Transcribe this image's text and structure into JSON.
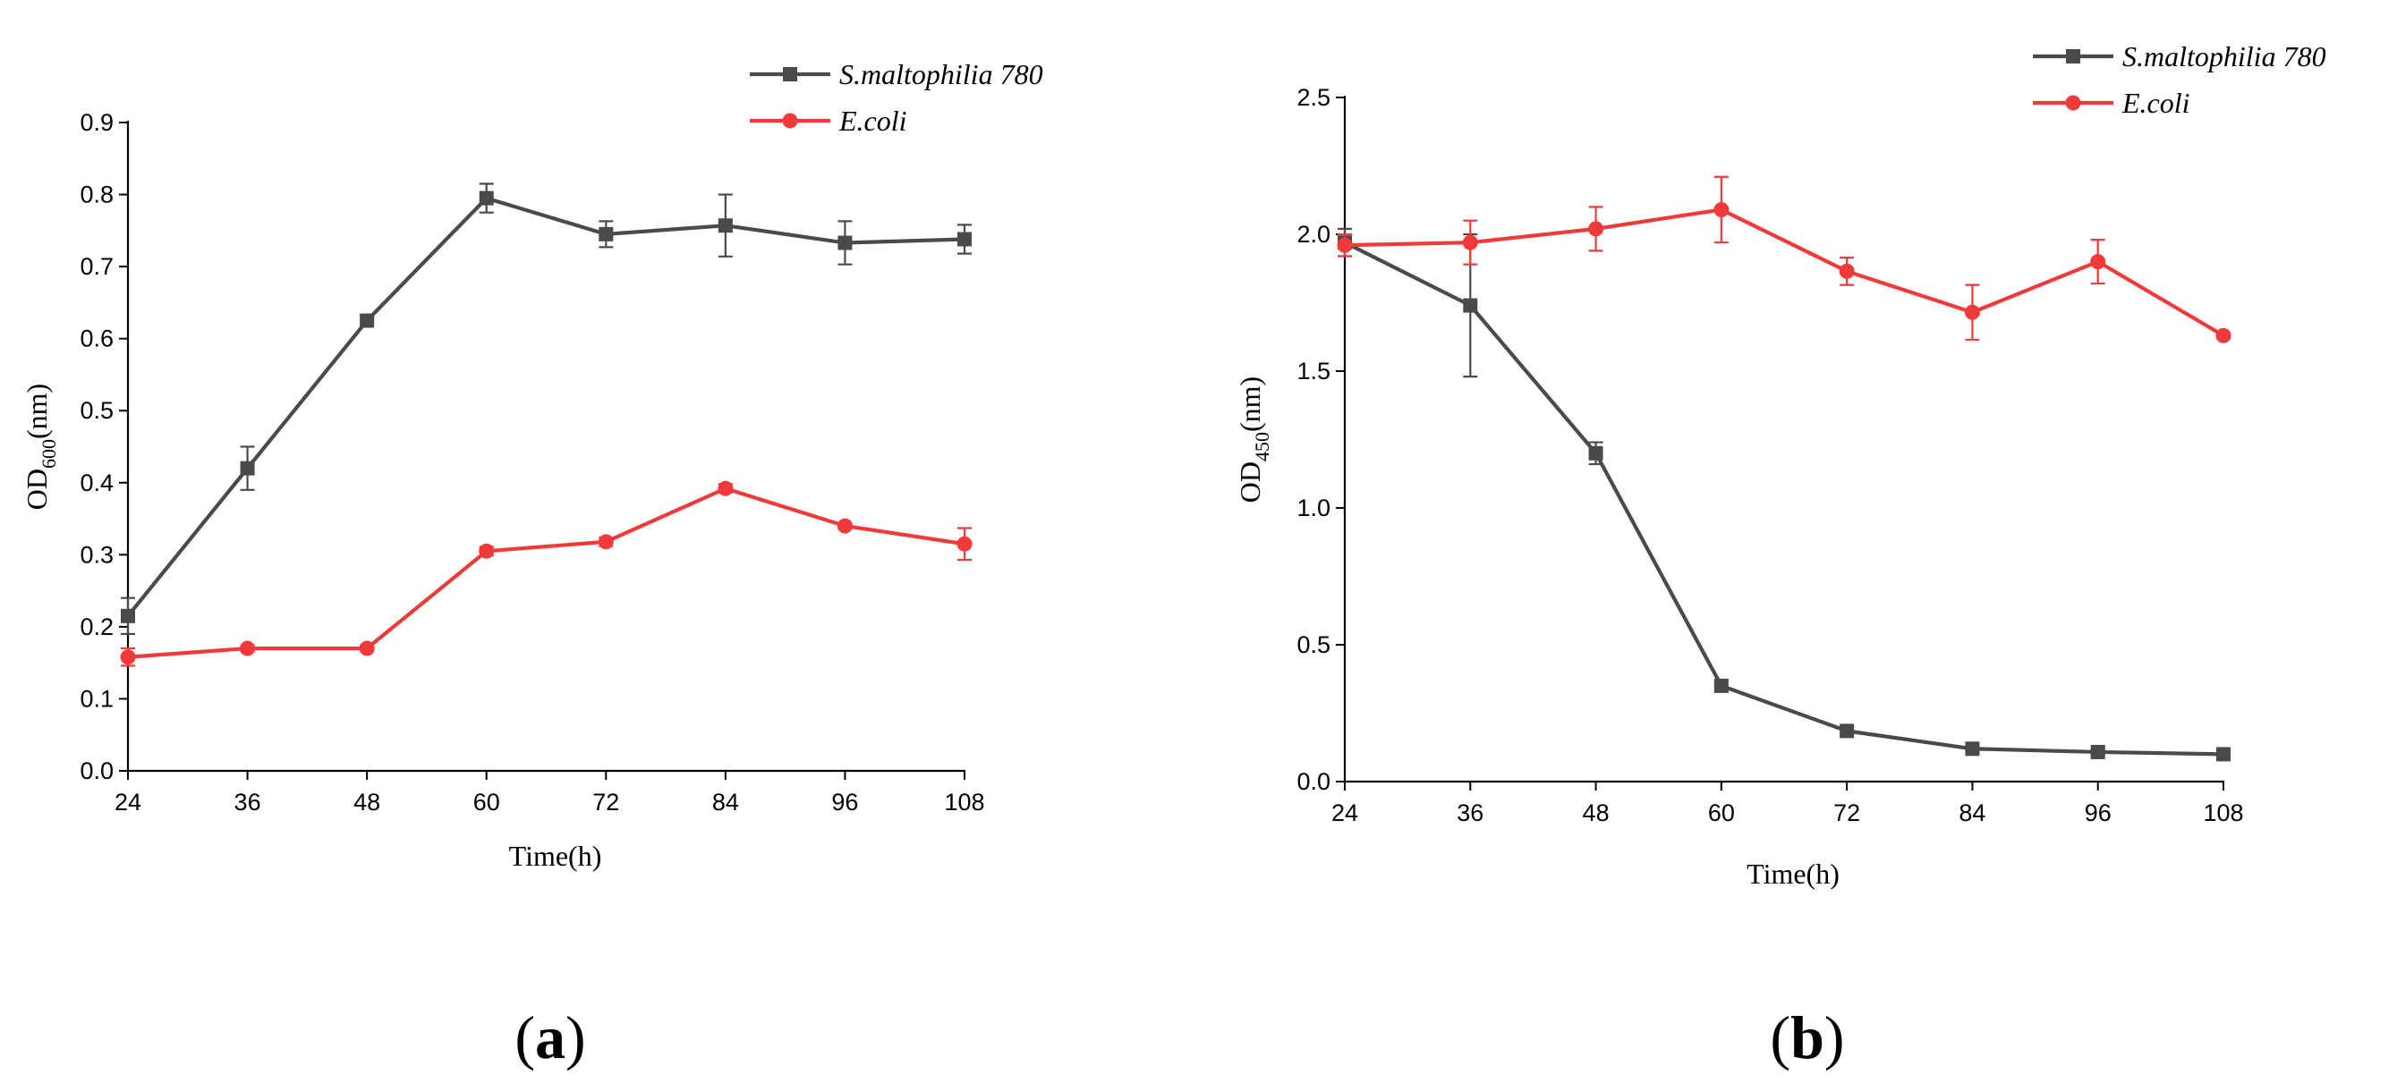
{
  "chart_data": [
    {
      "type": "line",
      "panel": "(a)",
      "panel_letter": "a",
      "xlabel": "Time(h)",
      "ylabel_main": "OD",
      "ylabel_sub": "600",
      "ylabel_unit": "(nm)",
      "x": [
        24,
        36,
        48,
        60,
        72,
        84,
        96,
        108
      ],
      "x_ticks": [
        "24",
        "36",
        "48",
        "60",
        "72",
        "84",
        "96",
        "108"
      ],
      "ylim": [
        0,
        0.9
      ],
      "y_ticks": [
        "0.0",
        "0.1",
        "0.2",
        "0.3",
        "0.4",
        "0.5",
        "0.6",
        "0.7",
        "0.8",
        "0.9"
      ],
      "series": [
        {
          "name": "S.maltophilia 780",
          "color": "#4a4a4a",
          "marker": "square",
          "values": [
            0.215,
            0.42,
            0.625,
            0.795,
            0.745,
            0.757,
            0.733,
            0.738
          ],
          "errors": [
            0.025,
            0.03,
            0.005,
            0.02,
            0.018,
            0.043,
            0.03,
            0.02
          ]
        },
        {
          "name": "E.coli",
          "color": "#f03a3a",
          "marker": "circle",
          "values": [
            0.158,
            0.17,
            0.17,
            0.305,
            0.318,
            0.392,
            0.34,
            0.315
          ],
          "errors": [
            0.012,
            0.004,
            0.004,
            0.006,
            0.006,
            0.006,
            0.004,
            0.022
          ]
        }
      ]
    },
    {
      "type": "line",
      "panel": "(b)",
      "panel_letter": "b",
      "xlabel": "Time(h)",
      "ylabel_main": "OD",
      "ylabel_sub": "450",
      "ylabel_unit": "(nm)",
      "x": [
        24,
        36,
        48,
        60,
        72,
        84,
        96,
        108
      ],
      "x_ticks": [
        "24",
        "36",
        "48",
        "60",
        "72",
        "84",
        "96",
        "108"
      ],
      "ylim": [
        0,
        2.5
      ],
      "y_ticks": [
        "0.0",
        "0.5",
        "1.0",
        "1.5",
        "2.0",
        "2.5"
      ],
      "series": [
        {
          "name": "S.maltophilia 780",
          "color": "#4a4a4a",
          "marker": "square",
          "values": [
            1.97,
            1.74,
            1.2,
            0.35,
            0.185,
            0.12,
            0.108,
            0.1
          ],
          "errors": [
            0.05,
            0.26,
            0.04,
            0.02,
            0.015,
            0.01,
            0.01,
            0.008
          ]
        },
        {
          "name": "E.coli",
          "color": "#f03a3a",
          "marker": "circle",
          "values": [
            1.96,
            1.97,
            2.02,
            2.09,
            1.865,
            1.715,
            1.9,
            1.63
          ],
          "errors": [
            0.04,
            0.08,
            0.08,
            0.12,
            0.05,
            0.1,
            0.08,
            0.01
          ]
        }
      ]
    }
  ]
}
